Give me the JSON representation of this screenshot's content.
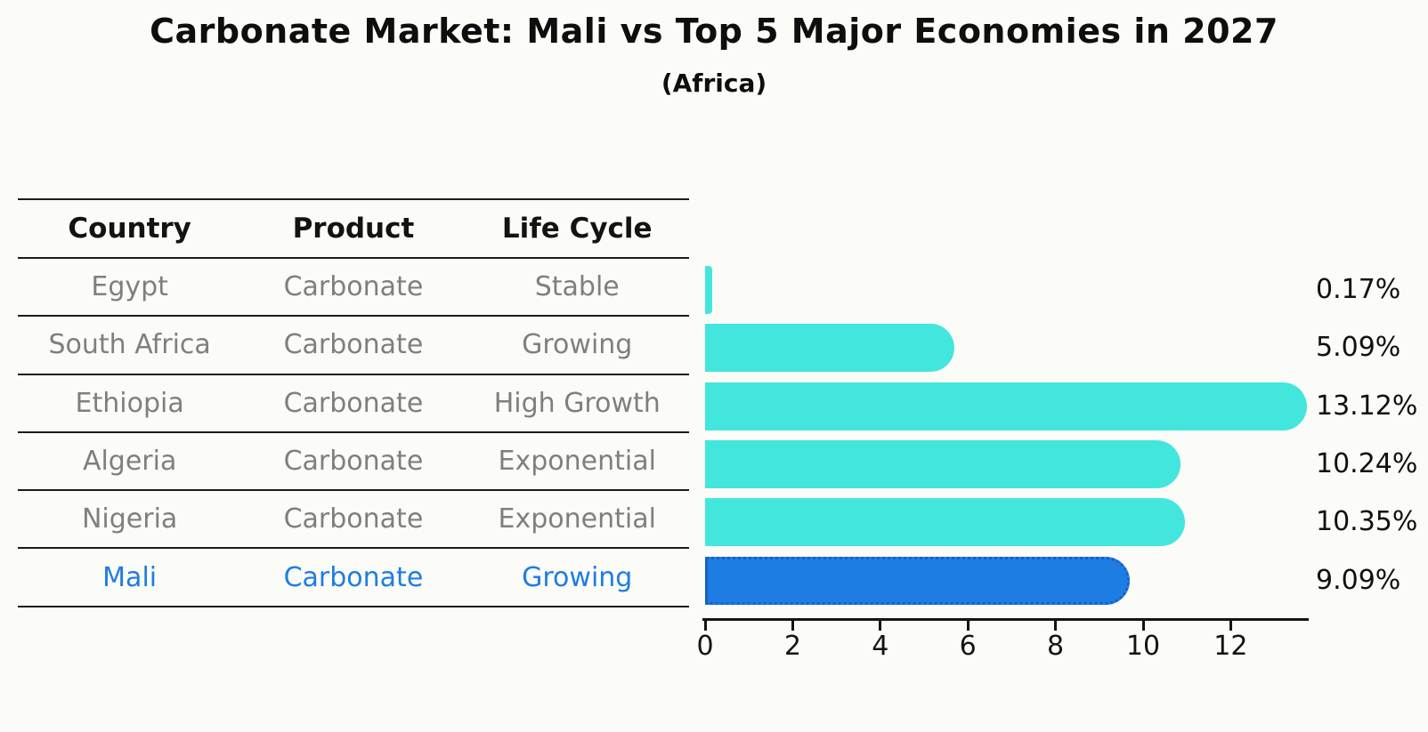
{
  "title": "Carbonate Market: Mali vs Top 5 Major Economies in 2027",
  "subtitle": "(Africa)",
  "table": {
    "headers": [
      "Country",
      "Product",
      "Life Cycle"
    ]
  },
  "chart_data": {
    "type": "bar",
    "orientation": "horizontal",
    "title": "Carbonate Market: Mali vs Top 5 Major Economies in 2027",
    "subtitle": "(Africa)",
    "xlabel": "",
    "ylabel": "",
    "x_ticks": [
      0,
      2,
      4,
      6,
      8,
      10,
      12
    ],
    "xlim": [
      0,
      13.8
    ],
    "grid": false,
    "legend": "none",
    "rows": [
      {
        "country": "Egypt",
        "product": "Carbonate",
        "life_cycle": "Stable",
        "value": 0.17,
        "label": "0.17%",
        "highlight": false
      },
      {
        "country": "South Africa",
        "product": "Carbonate",
        "life_cycle": "Growing",
        "value": 5.09,
        "label": "5.09%",
        "highlight": false
      },
      {
        "country": "Ethiopia",
        "product": "Carbonate",
        "life_cycle": "High Growth",
        "value": 13.12,
        "label": "13.12%",
        "highlight": false
      },
      {
        "country": "Algeria",
        "product": "Carbonate",
        "life_cycle": "Exponential",
        "value": 10.24,
        "label": "10.24%",
        "highlight": false
      },
      {
        "country": "Nigeria",
        "product": "Carbonate",
        "life_cycle": "Exponential",
        "value": 10.35,
        "label": "10.35%",
        "highlight": false
      },
      {
        "country": "Mali",
        "product": "Carbonate",
        "life_cycle": "Growing",
        "value": 9.09,
        "label": "9.09%",
        "highlight": true
      }
    ],
    "colors": {
      "bar": "#43e6dd",
      "highlight_bar": "#1e7de3",
      "highlight_border": "#1261c9",
      "highlight_text": "#1e7de3",
      "row_text": "#7f7f7f",
      "axis": "#141414"
    }
  }
}
